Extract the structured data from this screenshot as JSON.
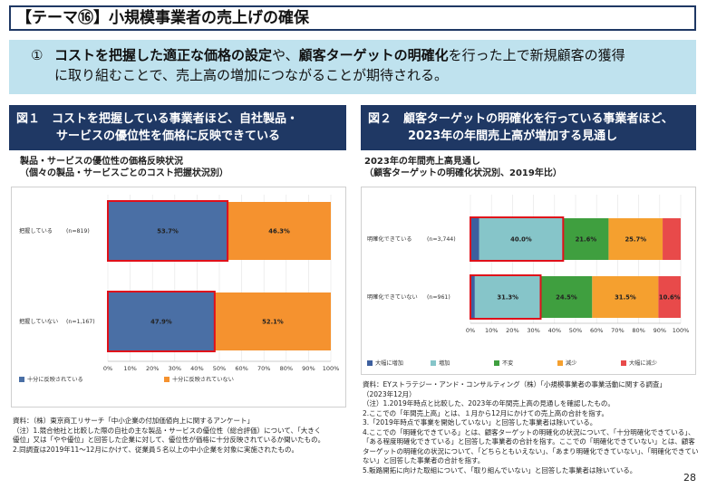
{
  "title": "【テーマ⑯】小規模事業者の売上げの確保",
  "banner": {
    "num": "①",
    "p1_bold": "コストを把握した適正な価格の設定",
    "p2": "や、",
    "p3_bold": "顧客ターゲットの明確化",
    "p4": "を行った上で新規顧客の獲得",
    "p5": "に取り組むことで、売上高の増加につながることが期待される。"
  },
  "fig1": {
    "header_line1": "図１　コストを把握している事業者ほど、自社製品・",
    "header_line2": "サービスの優位性を価格に反映できている",
    "subtitle_line1": "製品・サービスの優位性の価格反映状況",
    "subtitle_line2": "（個々の製品・サービスごとのコスト把握状況別）",
    "notes": [
      "資料：（株）東京商工リサーチ「中小企業の付加価値向上に関するアンケート」",
      "（注）1.競合他社と比較した際の自社の主な製品・サービスの優位性（総合評価）について、「大きく",
      "優位」又は「やや優位」と回答した企業に対して、優位性が価格に十分反映されているか聞いたもの。",
      "2.同調査は2019年11～12月にかけて、従業員５名以上の中小企業を対象に実施されたもの。"
    ]
  },
  "fig2": {
    "header_line1": "図２　顧客ターゲットの明確化を行っている事業者ほど、",
    "header_line2": "2023年の年間売上高が増加する見通し",
    "subtitle_line1": "2023年の年間売上高見通し",
    "subtitle_line2": "（顧客ターゲットの明確化状況別、2019年比）",
    "notes": [
      "資料：EYストラテジー・アンド・コンサルティング（株）「小規模事業者の事業活動に関する調査」",
      "（2023年12月）",
      "（注）1.2019年時点と比較した、2023年の年間売上高の見通しを確認したもの。",
      "2.ここでの「年間売上高」とは、１月から12月にかけての売上高の合計を指す。",
      "3.「2019年時点で事業を開始していない」と回答した事業者は除いている。",
      "4.ここでの「明確化できている」とは、顧客ターゲットの明確化の状況について、「十分明確化できている」、",
      "「ある程度明確化できている」と回答した事業者の合計を指す。ここでの「明確化できていない」とは、顧客",
      "ターゲットの明確化の状況について、「どちらともいえない」、「あまり明確化できていない」、「明確化できてい",
      "ない」と回答した事業者の合計を指す。",
      "5.販路開拓に向けた取組について、「取り組んでいない」と回答した事業者は除いている。"
    ]
  },
  "chart_data": [
    {
      "type": "bar",
      "orientation": "horizontal-stacked",
      "categories": [
        "把握している",
        "把握していない"
      ],
      "n_labels": [
        "(n=819)",
        "(n=1,167)"
      ],
      "series": [
        {
          "name": "十分に反映されている",
          "values": [
            53.7,
            47.9
          ],
          "color": "#4a6fa5"
        },
        {
          "name": "十分に反映されていない",
          "values": [
            46.3,
            52.1
          ],
          "color": "#f5922f"
        }
      ],
      "data_labels": [
        [
          "53.7%",
          "46.3%"
        ],
        [
          "47.9%",
          "52.1%"
        ]
      ],
      "xticks": [
        "0%",
        "10%",
        "20%",
        "30%",
        "40%",
        "50%",
        "60%",
        "70%",
        "80%",
        "90%",
        "100%"
      ],
      "xlim": [
        0,
        100
      ],
      "highlight_series_index": 0,
      "legend_position": "bottom"
    },
    {
      "type": "bar",
      "orientation": "horizontal-stacked",
      "categories": [
        "明確化できている",
        "明確化できていない"
      ],
      "n_labels": [
        "(n=3,744)",
        "(n=961)"
      ],
      "series": [
        {
          "name": "大幅に増加",
          "values": [
            4.1,
            2.1
          ],
          "color": "#3d5f9e"
        },
        {
          "name": "増加",
          "values": [
            40.0,
            31.3
          ],
          "color": "#86c5c9"
        },
        {
          "name": "不変",
          "values": [
            21.6,
            24.5
          ],
          "color": "#3f9f3f"
        },
        {
          "name": "減少",
          "values": [
            25.7,
            31.5
          ],
          "color": "#f5a02f"
        },
        {
          "name": "大幅に減少",
          "values": [
            8.6,
            10.6
          ],
          "color": "#e84a4a"
        }
      ],
      "data_labels": [
        [
          "",
          "40.0%",
          "21.6%",
          "25.7%",
          ""
        ],
        [
          "",
          "31.3%",
          "24.5%",
          "31.5%",
          "10.6%"
        ]
      ],
      "xticks": [
        "0%",
        "10%",
        "20%",
        "30%",
        "40%",
        "50%",
        "60%",
        "70%",
        "80%",
        "90%",
        "100%"
      ],
      "xlim": [
        0,
        100
      ],
      "highlight_series_indices": [
        0,
        1
      ],
      "legend_position": "bottom"
    }
  ],
  "page_number": "28"
}
